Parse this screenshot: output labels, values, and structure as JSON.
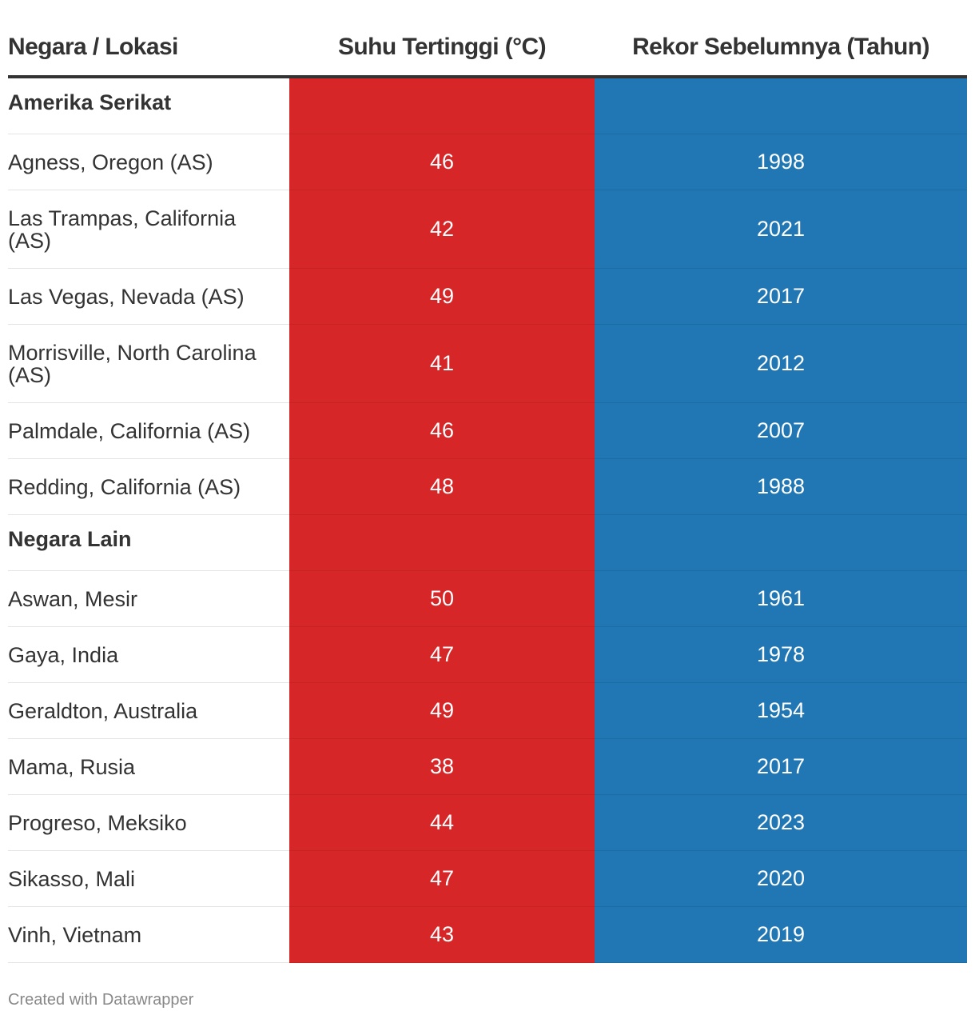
{
  "header": {
    "col_location": "Negara / Lokasi",
    "col_temp": "Suhu Tertinggi (°C)",
    "col_year": "Rekor Sebelumnya (Tahun)"
  },
  "colors": {
    "temp_fill": "#d62627",
    "year_fill": "#2077b4"
  },
  "chart_data": {
    "type": "table",
    "columns": [
      "Negara / Lokasi",
      "Suhu Tertinggi (°C)",
      "Rekor Sebelumnya (Tahun)"
    ],
    "rows": [
      {
        "group": true,
        "location": "Amerika Serikat",
        "temp": "",
        "year": ""
      },
      {
        "group": false,
        "location": "Agness, Oregon (AS)",
        "temp": "46",
        "year": "1998"
      },
      {
        "group": false,
        "location": "Las Trampas, California (AS)",
        "temp": "42",
        "year": "2021"
      },
      {
        "group": false,
        "location": "Las Vegas, Nevada (AS)",
        "temp": "49",
        "year": "2017"
      },
      {
        "group": false,
        "location": "Morrisville, North Carolina (AS)",
        "temp": "41",
        "year": "2012"
      },
      {
        "group": false,
        "location": "Palmdale, California (AS)",
        "temp": "46",
        "year": "2007"
      },
      {
        "group": false,
        "location": "Redding, California (AS)",
        "temp": "48",
        "year": "1988"
      },
      {
        "group": true,
        "location": "Negara Lain",
        "temp": "",
        "year": ""
      },
      {
        "group": false,
        "location": "Aswan, Mesir",
        "temp": "50",
        "year": "1961"
      },
      {
        "group": false,
        "location": "Gaya, India",
        "temp": "47",
        "year": "1978"
      },
      {
        "group": false,
        "location": "Geraldton, Australia",
        "temp": "49",
        "year": "1954"
      },
      {
        "group": false,
        "location": "Mama, Rusia",
        "temp": "38",
        "year": "2017"
      },
      {
        "group": false,
        "location": "Progreso, Meksiko",
        "temp": "44",
        "year": "2023"
      },
      {
        "group": false,
        "location": "Sikasso, Mali",
        "temp": "47",
        "year": "2020"
      },
      {
        "group": false,
        "location": "Vinh, Vietnam",
        "temp": "43",
        "year": "2019"
      }
    ]
  },
  "footer": {
    "credit": "Created with Datawrapper"
  }
}
